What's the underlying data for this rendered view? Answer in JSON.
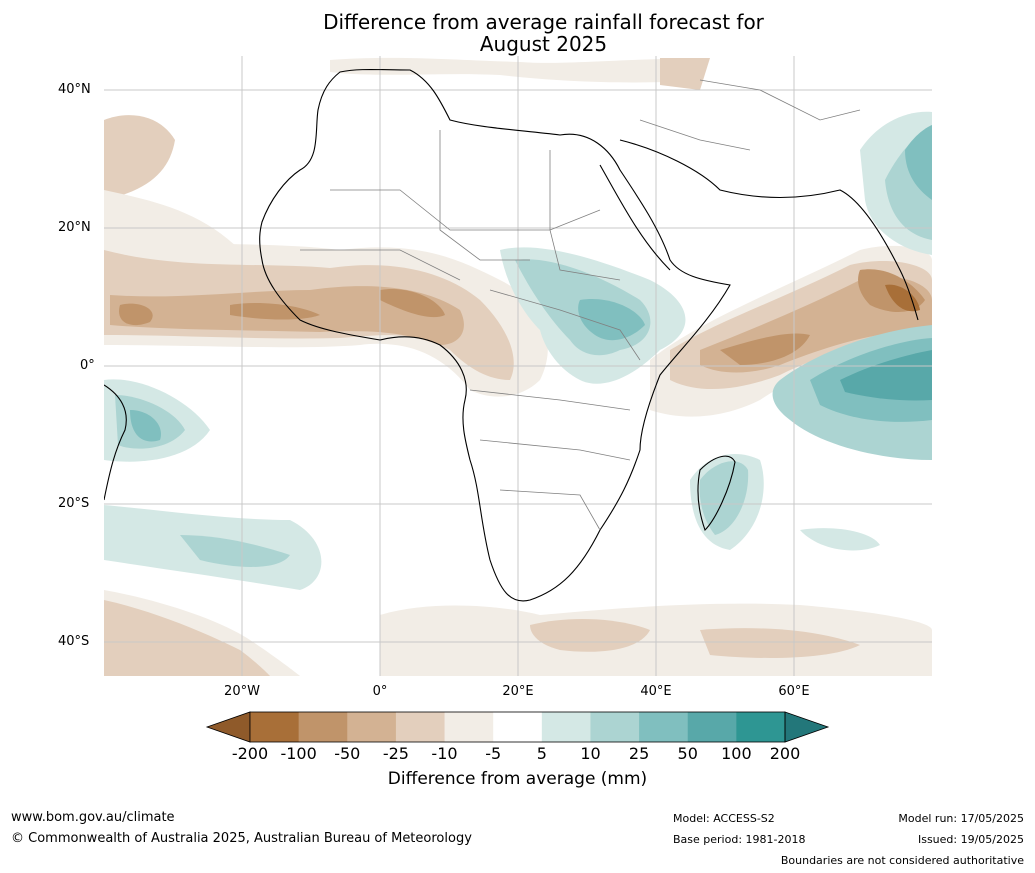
{
  "title": {
    "line1": "Difference from average rainfall forecast for",
    "line2": "August 2025"
  },
  "map": {
    "lat_labels": [
      "40°N",
      "20°N",
      "0°",
      "20°S",
      "40°S"
    ],
    "lon_labels": [
      "20°W",
      "0°",
      "20°E",
      "40°E",
      "60°E"
    ]
  },
  "colorbar": {
    "labels": [
      "-200",
      "-100",
      "-50",
      "-25",
      "-10",
      "-5",
      "5",
      "10",
      "25",
      "50",
      "100",
      "200"
    ],
    "colors": [
      "#a86f38",
      "#c0946a",
      "#d3b293",
      "#e3cfbd",
      "#f2ede6",
      "#ffffff",
      "#d4e8e5",
      "#acd4d2",
      "#80bfbf",
      "#58a8a9",
      "#2e9693",
      "#23777a"
    ],
    "title": "Difference from average (mm)"
  },
  "footer": {
    "url": "www.bom.gov.au/climate",
    "copyright": "© Commonwealth of Australia 2025, Australian Bureau of Meteorology",
    "model": "Model: ACCESS-S2",
    "base_period": "Base period: 1981-2018",
    "model_run": "Model run: 17/05/2025",
    "issued": "Issued: 19/05/2025",
    "disclaimer": "Boundaries are not considered authoritative"
  }
}
